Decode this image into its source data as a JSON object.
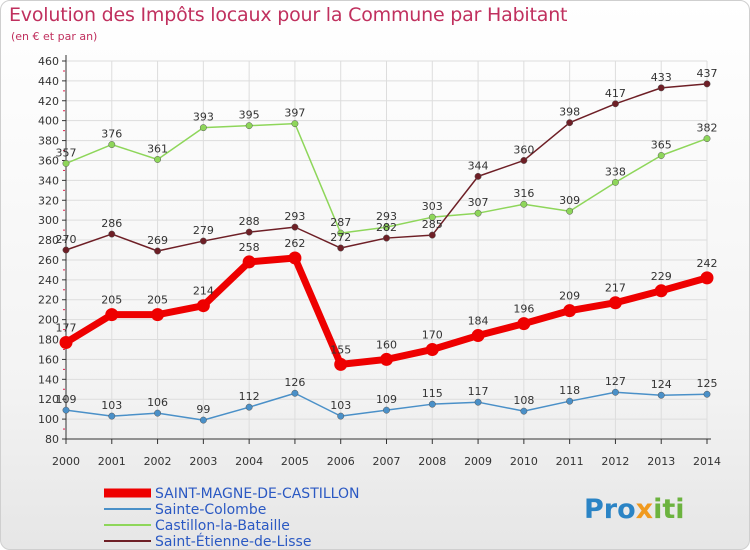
{
  "title": "Evolution des Impôts locaux pour la Commune par Habitant",
  "subtitle": "(en € et par an)",
  "logo": {
    "part1": "Pro",
    "part2": "x",
    "part3": "iti"
  },
  "colors": {
    "title": "#c0305e",
    "axis": "#333333",
    "grid": "#dddddd",
    "tick_minor": "#e0204d"
  },
  "chart_data": {
    "type": "line",
    "title": "Evolution des Impôts locaux pour la Commune par Habitant",
    "subtitle": "(en € et par an)",
    "xlabel": "",
    "ylabel": "",
    "ylim": [
      80,
      460
    ],
    "yticks": [
      80,
      100,
      120,
      140,
      160,
      180,
      200,
      220,
      240,
      260,
      280,
      300,
      320,
      340,
      360,
      380,
      400,
      420,
      440,
      460
    ],
    "x": [
      "2000",
      "2001",
      "2002",
      "2003",
      "2004",
      "2005",
      "2006",
      "2007",
      "2008",
      "2009",
      "2010",
      "2011",
      "2012",
      "2013",
      "2014"
    ],
    "grid": true,
    "legend_position": "bottom-left",
    "series": [
      {
        "name": "SAINT-MAGNE-DE-CASTILLON",
        "color": "#ee0000",
        "emphasis": true,
        "values": [
          177,
          205,
          205,
          214,
          258,
          262,
          155,
          160,
          170,
          184,
          196,
          209,
          217,
          229,
          242
        ]
      },
      {
        "name": "Sainte-Colombe",
        "color": "#4a90c8",
        "values": [
          109,
          103,
          106,
          99,
          112,
          126,
          103,
          109,
          115,
          117,
          108,
          118,
          127,
          124,
          125
        ]
      },
      {
        "name": "Castillon-la-Bataille",
        "color": "#8ed65a",
        "values": [
          357,
          376,
          361,
          393,
          395,
          397,
          287,
          293,
          303,
          307,
          316,
          309,
          338,
          365,
          382
        ]
      },
      {
        "name": "Saint-Étienne-de-Lisse",
        "color": "#6e1f26",
        "values": [
          270,
          286,
          269,
          279,
          288,
          293,
          272,
          282,
          285,
          344,
          360,
          398,
          417,
          433,
          437
        ]
      }
    ]
  }
}
